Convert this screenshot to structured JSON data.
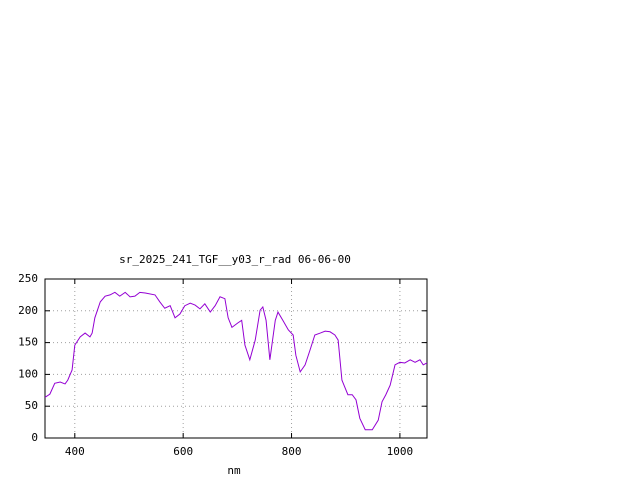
{
  "chart_data": {
    "type": "line",
    "title": "sr_2025_241_TGF__y03_r_rad 06-06-00",
    "x_label": "nm",
    "x": [
      345,
      354,
      363,
      373,
      382,
      387,
      395,
      400,
      410,
      419,
      428,
      432,
      437,
      447,
      456,
      465,
      474,
      483,
      493,
      502,
      511,
      520,
      530,
      548,
      557,
      566,
      576,
      585,
      594,
      603,
      613,
      622,
      631,
      640,
      650,
      659,
      668,
      677,
      683,
      690,
      701,
      708,
      714,
      723,
      733,
      742,
      747,
      753,
      760,
      770,
      775,
      784,
      794,
      803,
      808,
      816,
      825,
      834,
      843,
      853,
      862,
      871,
      880,
      886,
      893,
      904,
      912,
      919,
      926,
      936,
      949,
      960,
      967,
      974,
      982,
      991,
      1000,
      1009,
      1019,
      1028,
      1037,
      1043,
      1050
    ],
    "series": [
      {
        "name": "sr_2025_241_TGF__y03_r_rad",
        "color": "#9400d3",
        "values": [
          64,
          69,
          86,
          88,
          85,
          91,
          107,
          146,
          159,
          165,
          159,
          165,
          189,
          214,
          223,
          225,
          229,
          223,
          229,
          222,
          223,
          229,
          228,
          225,
          214,
          204,
          208,
          189,
          195,
          208,
          212,
          209,
          203,
          211,
          198,
          208,
          222,
          219,
          189,
          174,
          181,
          185,
          146,
          123,
          154,
          201,
          206,
          185,
          123,
          185,
          198,
          185,
          170,
          162,
          130,
          104,
          115,
          138,
          162,
          165,
          168,
          167,
          162,
          154,
          91,
          68,
          68,
          60,
          31,
          13,
          13,
          28,
          57,
          68,
          83,
          115,
          119,
          118,
          123,
          119,
          123,
          115,
          118
        ]
      }
    ],
    "xlim": [
      345,
      1050
    ],
    "ylim": [
      0,
      250
    ],
    "xticks": [
      400,
      600,
      800,
      1000
    ],
    "yticks": [
      0,
      50,
      100,
      150,
      200,
      250
    ],
    "grid": true
  }
}
